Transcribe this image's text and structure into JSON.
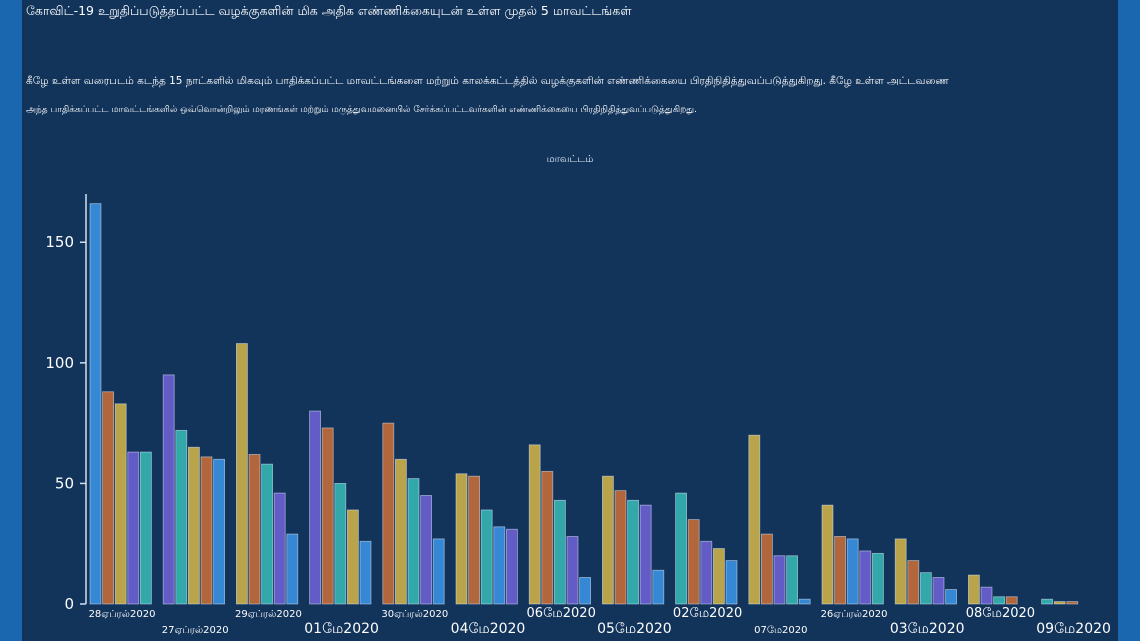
{
  "page": {
    "heading": "கோவிட்-19 உறுதிப்படுத்தப்பட்ட வழக்குகளின் மிக அதிக எண்ணிக்கையுடன் உள்ள முதல் 5 மாவட்டங்கள்",
    "description_line1": "கீழே உள்ள வரைபடம் கடந்த 15 நாட்களில் மிகவும் பாதிக்கப்பட்ட மாவட்டங்களை மற்றும் காலக்கட்டத்தில் வழக்குகளின் எண்ணிக்கையை பிரதிநிதித்துவப்படுத்துகிறது. கீழே உள்ள அட்டவணை",
    "description_line2": "அந்த பாதிக்கப்பட்ட மாவட்டங்களில் ஒவ்வொன்றிலும் மரணங்கள் மற்றும் மருத்துவமனையில் சேர்க்கப்பட்டவர்களின் எண்ணிக்கையை பிரதிநிதித்துவப்படுத்துகிறது."
  },
  "colors": {
    "page_background": "#0c3a6b",
    "panel_background": "#12335a",
    "side_bars": "#1a67b0",
    "palette": [
      "#3a8fe0",
      "#c06a3a",
      "#c8ac4a",
      "#6a5fd0",
      "#35b2b2"
    ]
  },
  "chart_data": {
    "type": "bar",
    "title": "மாவட்டம்",
    "subtitle": "",
    "xlabel": "",
    "ylabel": "",
    "ylim": [
      0,
      170
    ],
    "yticks": [
      0,
      50,
      100,
      150
    ],
    "grid": false,
    "legend": "none",
    "categories": [
      "28ஏப்ரல்2020",
      "27ஏப்ரல்2020",
      "29ஏப்ரல்2020",
      "01மே2020",
      "30ஏப்ரல்2020",
      "04மே2020",
      "06மே2020",
      "05மே2020",
      "02மே2020",
      "07மே2020",
      "26ஏப்ரல்2020",
      "03மே2020",
      "08மே2020",
      "09மே2020"
    ],
    "groups": [
      {
        "values": [
          166,
          88,
          83,
          63,
          63
        ],
        "colors": [
          0,
          1,
          2,
          3,
          4
        ]
      },
      {
        "values": [
          95,
          72,
          65,
          61,
          60
        ],
        "colors": [
          3,
          4,
          2,
          1,
          0
        ]
      },
      {
        "values": [
          108,
          62,
          58,
          46,
          29
        ],
        "colors": [
          2,
          1,
          4,
          3,
          0
        ]
      },
      {
        "values": [
          80,
          73,
          50,
          39,
          26
        ],
        "colors": [
          3,
          1,
          4,
          2,
          0
        ]
      },
      {
        "values": [
          75,
          60,
          52,
          45,
          27
        ],
        "colors": [
          1,
          2,
          4,
          3,
          0
        ]
      },
      {
        "values": [
          54,
          53,
          39,
          32,
          31
        ],
        "colors": [
          2,
          1,
          4,
          0,
          3
        ]
      },
      {
        "values": [
          66,
          55,
          43,
          28,
          11
        ],
        "colors": [
          2,
          1,
          4,
          3,
          0
        ]
      },
      {
        "values": [
          53,
          47,
          43,
          41,
          14
        ],
        "colors": [
          2,
          1,
          4,
          3,
          0
        ]
      },
      {
        "values": [
          46,
          35,
          26,
          23,
          18
        ],
        "colors": [
          4,
          1,
          3,
          2,
          0
        ]
      },
      {
        "values": [
          70,
          29,
          20,
          20,
          2
        ],
        "colors": [
          2,
          1,
          3,
          4,
          0
        ]
      },
      {
        "values": [
          41,
          28,
          27,
          22,
          21
        ],
        "colors": [
          2,
          1,
          0,
          3,
          4
        ]
      },
      {
        "values": [
          27,
          18,
          13,
          11,
          6
        ],
        "colors": [
          2,
          1,
          4,
          3,
          0
        ]
      },
      {
        "values": [
          12,
          7,
          3,
          3
        ],
        "colors": [
          2,
          3,
          4,
          1
        ]
      },
      {
        "values": [
          2,
          1,
          1
        ],
        "colors": [
          4,
          2,
          1
        ]
      }
    ]
  }
}
